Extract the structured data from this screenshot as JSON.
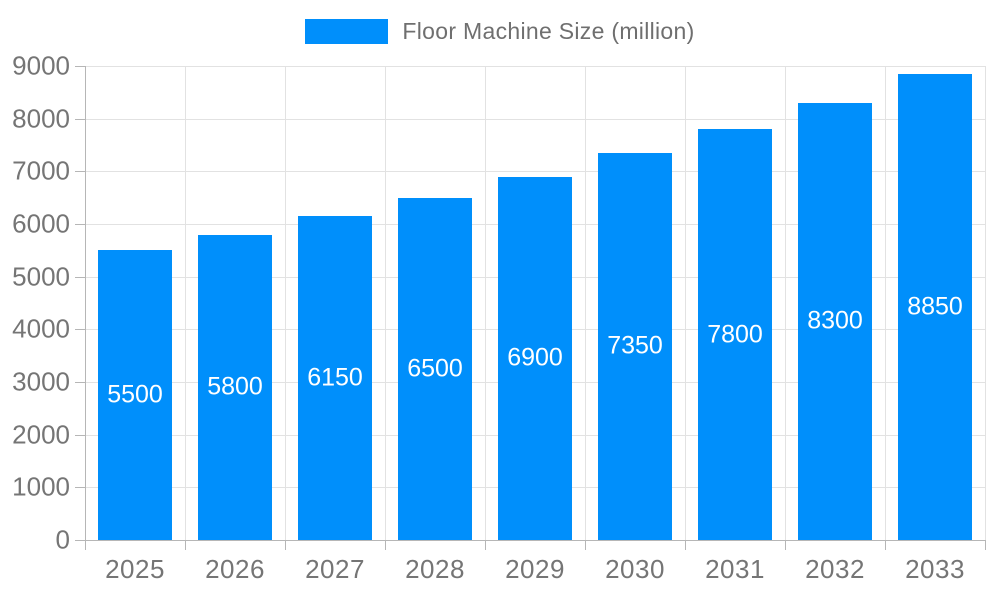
{
  "chart_data": {
    "type": "bar",
    "title": "Floor Machine Size (million)",
    "categories": [
      "2025",
      "2026",
      "2027",
      "2028",
      "2029",
      "2030",
      "2031",
      "2032",
      "2033"
    ],
    "values": [
      5500,
      5800,
      6150,
      6500,
      6900,
      7350,
      7800,
      8300,
      8850
    ],
    "value_labels": [
      "5500",
      "5800",
      "6150",
      "6500",
      "6900",
      "7350",
      "7800",
      "8300",
      "8850"
    ],
    "xlabel": "",
    "ylabel": "",
    "ylim": [
      0,
      9000
    ],
    "y_ticks": [
      0,
      1000,
      2000,
      3000,
      4000,
      5000,
      6000,
      7000,
      8000,
      9000
    ],
    "grid": true,
    "legend_position": "top",
    "legend_marker": "rectangle",
    "colors": {
      "bar": "#008ffb",
      "value_label": "#ffffff",
      "axis_label": "#757575",
      "legend_text": "#6f6f6f",
      "gridline": "#e2e2e2",
      "axis_line": "#b6b6b6"
    }
  }
}
